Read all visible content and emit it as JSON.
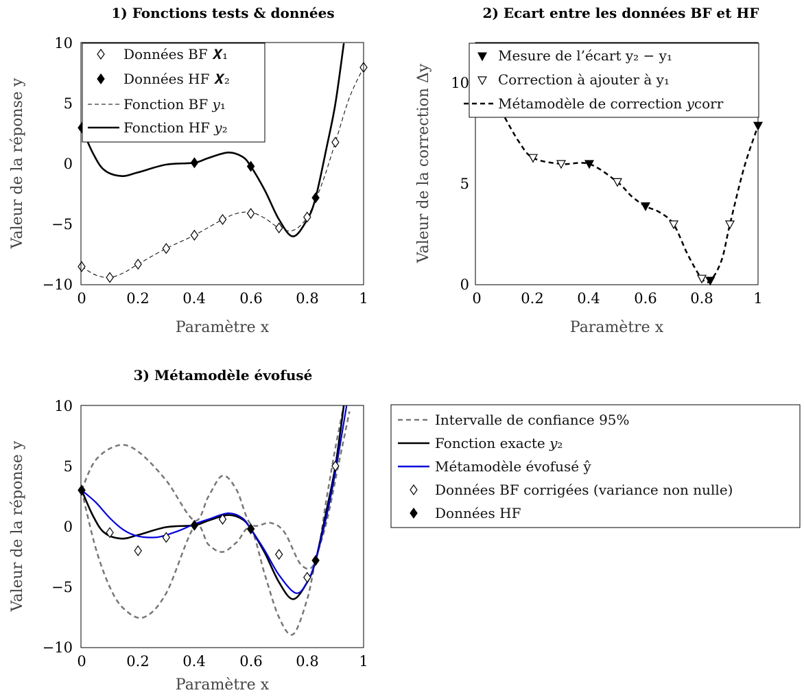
{
  "chart_data": [
    {
      "type": "line",
      "title": "1) Fonctions tests & données",
      "xlabel": "Paramètre x",
      "ylabel": "Valeur de la réponse y",
      "xlim": [
        0,
        1
      ],
      "ylim": [
        -10,
        10
      ],
      "xticks": [
        "0",
        "0.2",
        "0.4",
        "0.6",
        "0.8",
        "1"
      ],
      "yticks": [
        "−10",
        "−5",
        "0",
        "5",
        "10"
      ],
      "grid": false,
      "legend_position": "top-left",
      "legend": [
        "Données BF 𝑿₁",
        "Données HF 𝑿₂",
        "Fonction BF 𝑦₁",
        "Fonction HF 𝑦₂"
      ],
      "series": [
        {
          "name": "Données BF 𝑿₁",
          "style": "open-diamond",
          "x": [
            0,
            0.1,
            0.2,
            0.3,
            0.4,
            0.5,
            0.6,
            0.7,
            0.8,
            0.9,
            1.0
          ],
          "y": [
            -8.5,
            -9.4,
            -8.3,
            -7.0,
            -5.9,
            -4.6,
            -4.1,
            -5.3,
            -4.4,
            1.8,
            8.0
          ]
        },
        {
          "name": "Données HF 𝑿₂",
          "style": "filled-diamond",
          "x": [
            0,
            0.4,
            0.6,
            0.83
          ],
          "y": [
            3.0,
            0.1,
            -0.2,
            -2.8
          ]
        },
        {
          "name": "Fonction BF 𝑦₁",
          "style": "thin-dashed",
          "x": [
            0,
            0.05,
            0.1,
            0.15,
            0.2,
            0.3,
            0.4,
            0.5,
            0.55,
            0.6,
            0.65,
            0.7,
            0.75,
            0.8,
            0.85,
            0.9,
            0.95,
            1.0
          ],
          "y": [
            -8.5,
            -9.2,
            -9.4,
            -9.0,
            -8.3,
            -7.0,
            -5.9,
            -4.6,
            -4.1,
            -4.0,
            -4.5,
            -5.3,
            -5.5,
            -4.4,
            -1.8,
            1.8,
            5.5,
            8.0
          ]
        },
        {
          "name": "Fonction HF 𝑦₂",
          "style": "thick-solid",
          "x": [
            0,
            0.04,
            0.08,
            0.14,
            0.2,
            0.3,
            0.4,
            0.45,
            0.52,
            0.57,
            0.6,
            0.65,
            0.7,
            0.75,
            0.8,
            0.83,
            0.87,
            0.9,
            0.93
          ],
          "y": [
            3.0,
            0.9,
            -0.5,
            -1.0,
            -0.7,
            -0.05,
            0.1,
            0.5,
            0.95,
            0.6,
            -0.2,
            -2.2,
            -4.6,
            -6.0,
            -4.6,
            -2.8,
            1.5,
            5.0,
            10.0
          ]
        }
      ]
    },
    {
      "type": "line",
      "title": "2) Ecart entre les données BF et HF",
      "xlabel": "Paramètre x",
      "ylabel": "Valeur de la correction Δy",
      "xlim": [
        0,
        1
      ],
      "ylim": [
        0,
        12
      ],
      "xticks": [
        "0",
        "0.2",
        "0.4",
        "0.6",
        "0.8",
        "1"
      ],
      "yticks": [
        "0",
        "5",
        "10"
      ],
      "grid": false,
      "legend_position": "top",
      "legend": [
        "Mesure de l’écart y₂ − y₁",
        "Correction à ajouter à y₁",
        "Métamodèle de correction 𝑦corr"
      ],
      "series": [
        {
          "name": "Mesure de l’écart y₂ − y₁",
          "style": "filled-triangle-down",
          "x": [
            0,
            0.4,
            0.6,
            0.83,
            1.0
          ],
          "y": [
            11.5,
            6.0,
            3.9,
            0.2,
            7.9
          ]
        },
        {
          "name": "Correction à ajouter à y₁",
          "style": "open-triangle-down",
          "x": [
            0.2,
            0.3,
            0.5,
            0.7,
            0.8,
            0.9
          ],
          "y": [
            6.3,
            6.0,
            5.1,
            3.0,
            0.3,
            3.0
          ]
        },
        {
          "name": "Métamodèle de correction 𝑦corr",
          "style": "thick-dashed",
          "x": [
            0.1,
            0.15,
            0.2,
            0.3,
            0.4,
            0.5,
            0.55,
            0.6,
            0.65,
            0.7,
            0.75,
            0.8,
            0.83,
            0.87,
            0.9,
            0.95,
            1.0
          ],
          "y": [
            8.3,
            7.1,
            6.3,
            6.0,
            6.0,
            5.1,
            4.4,
            3.9,
            3.6,
            3.0,
            1.5,
            0.3,
            0.2,
            1.2,
            3.0,
            5.8,
            7.9
          ]
        }
      ]
    },
    {
      "type": "line",
      "title": "3) Métamodèle évofusé",
      "xlabel": "Paramètre x",
      "ylabel": "Valeur de la réponse y",
      "xlim": [
        0,
        1
      ],
      "ylim": [
        -10,
        10
      ],
      "xticks": [
        "0",
        "0.2",
        "0.4",
        "0.6",
        "0.8",
        "1"
      ],
      "yticks": [
        "−10",
        "−5",
        "0",
        "5",
        "10"
      ],
      "grid": false,
      "legend_position": "outside-right",
      "legend": [
        "Intervalle de confiance 95%",
        "Fonction exacte 𝑦₂",
        "Métamodèle évofusé ŷ",
        "Données BF corrigées (variance non nulle)",
        "Données HF"
      ],
      "series": [
        {
          "name": "Intervalle de confiance 95% (haut)",
          "style": "gray-dashed",
          "x": [
            0,
            0.05,
            0.13,
            0.2,
            0.3,
            0.4,
            0.45,
            0.5,
            0.55,
            0.6,
            0.67,
            0.72,
            0.78,
            0.83,
            0.87,
            0.9,
            0.93
          ],
          "y": [
            3.0,
            5.5,
            6.7,
            6.2,
            3.8,
            0.5,
            2.5,
            4.2,
            3.0,
            0.2,
            0.3,
            -0.5,
            -3.2,
            -2.8,
            2.5,
            6.5,
            10.0
          ]
        },
        {
          "name": "Intervalle de confiance 95% (bas)",
          "style": "gray-dashed",
          "x": [
            0,
            0.05,
            0.1,
            0.15,
            0.22,
            0.3,
            0.4,
            0.45,
            0.5,
            0.55,
            0.6,
            0.65,
            0.7,
            0.75,
            0.8,
            0.83,
            0.87,
            0.91,
            0.95
          ],
          "y": [
            3.0,
            -1.8,
            -5.0,
            -6.8,
            -7.5,
            -5.5,
            0.0,
            -1.5,
            -2.1,
            -1.3,
            -0.2,
            -4.0,
            -7.5,
            -8.9,
            -6.0,
            -2.8,
            0.5,
            5.0,
            9.5
          ]
        },
        {
          "name": "Fonction exacte 𝑦₂",
          "style": "thick-solid",
          "x": [
            0,
            0.04,
            0.08,
            0.14,
            0.2,
            0.3,
            0.4,
            0.45,
            0.52,
            0.57,
            0.6,
            0.65,
            0.7,
            0.75,
            0.8,
            0.83,
            0.87,
            0.9,
            0.93
          ],
          "y": [
            3.0,
            0.9,
            -0.5,
            -1.0,
            -0.7,
            -0.05,
            0.1,
            0.5,
            0.95,
            0.6,
            -0.2,
            -2.2,
            -4.6,
            -6.0,
            -4.6,
            -2.8,
            1.5,
            5.0,
            10.0
          ]
        },
        {
          "name": "Métamodèle évofusé ŷ",
          "style": "blue-solid",
          "x": [
            0,
            0.05,
            0.1,
            0.15,
            0.2,
            0.26,
            0.3,
            0.35,
            0.4,
            0.45,
            0.52,
            0.57,
            0.6,
            0.65,
            0.7,
            0.76,
            0.8,
            0.83,
            0.87,
            0.9,
            0.94
          ],
          "y": [
            3.0,
            2.0,
            0.7,
            -0.3,
            -0.8,
            -0.9,
            -0.7,
            -0.3,
            0.2,
            0.6,
            1.1,
            0.7,
            -0.2,
            -2.0,
            -4.0,
            -5.5,
            -4.6,
            -2.8,
            1.0,
            4.5,
            10.0
          ]
        },
        {
          "name": "Données BF corrigées (variance non nulle)",
          "style": "open-diamond",
          "x": [
            0.1,
            0.2,
            0.3,
            0.5,
            0.7,
            0.8,
            0.9
          ],
          "y": [
            -0.5,
            -2.0,
            -0.9,
            0.6,
            -2.3,
            -4.2,
            5.0
          ]
        },
        {
          "name": "Données HF",
          "style": "filled-diamond",
          "x": [
            0,
            0.4,
            0.6,
            0.83
          ],
          "y": [
            3.0,
            0.1,
            -0.2,
            -2.8
          ]
        }
      ]
    }
  ],
  "colors": {
    "black": "#000000",
    "blue": "#0000dd",
    "gray": "#777777"
  }
}
